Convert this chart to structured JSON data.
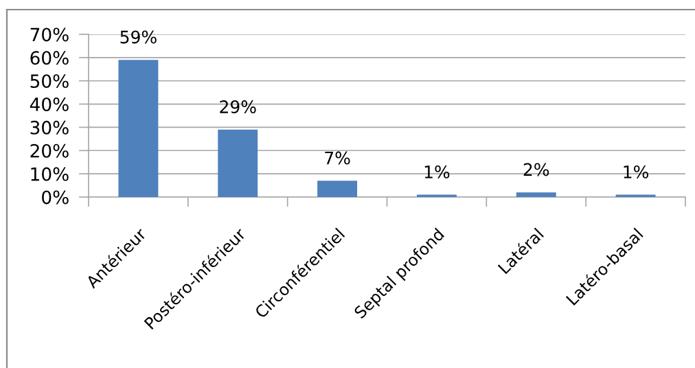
{
  "chart_data": {
    "type": "bar",
    "categories": [
      "Antérieur",
      "Postéro-inférieur",
      "Circonférentiel",
      "Septal profond",
      "Latéral",
      "Latéro-basal"
    ],
    "values": [
      59,
      29,
      7,
      1,
      2,
      1
    ],
    "value_labels": [
      "59%",
      "29%",
      "7%",
      "1%",
      "2%",
      "1%"
    ],
    "color": "#4f81bd",
    "ylim": [
      0,
      70
    ],
    "yticks": [
      {
        "value": 0,
        "label": "0%"
      },
      {
        "value": 10,
        "label": "10%"
      },
      {
        "value": 20,
        "label": "20%"
      },
      {
        "value": 30,
        "label": "30%"
      },
      {
        "value": 40,
        "label": "40%"
      },
      {
        "value": 50,
        "label": "50%"
      },
      {
        "value": 60,
        "label": "60%"
      },
      {
        "value": 70,
        "label": "70%"
      }
    ],
    "grid": "y"
  }
}
